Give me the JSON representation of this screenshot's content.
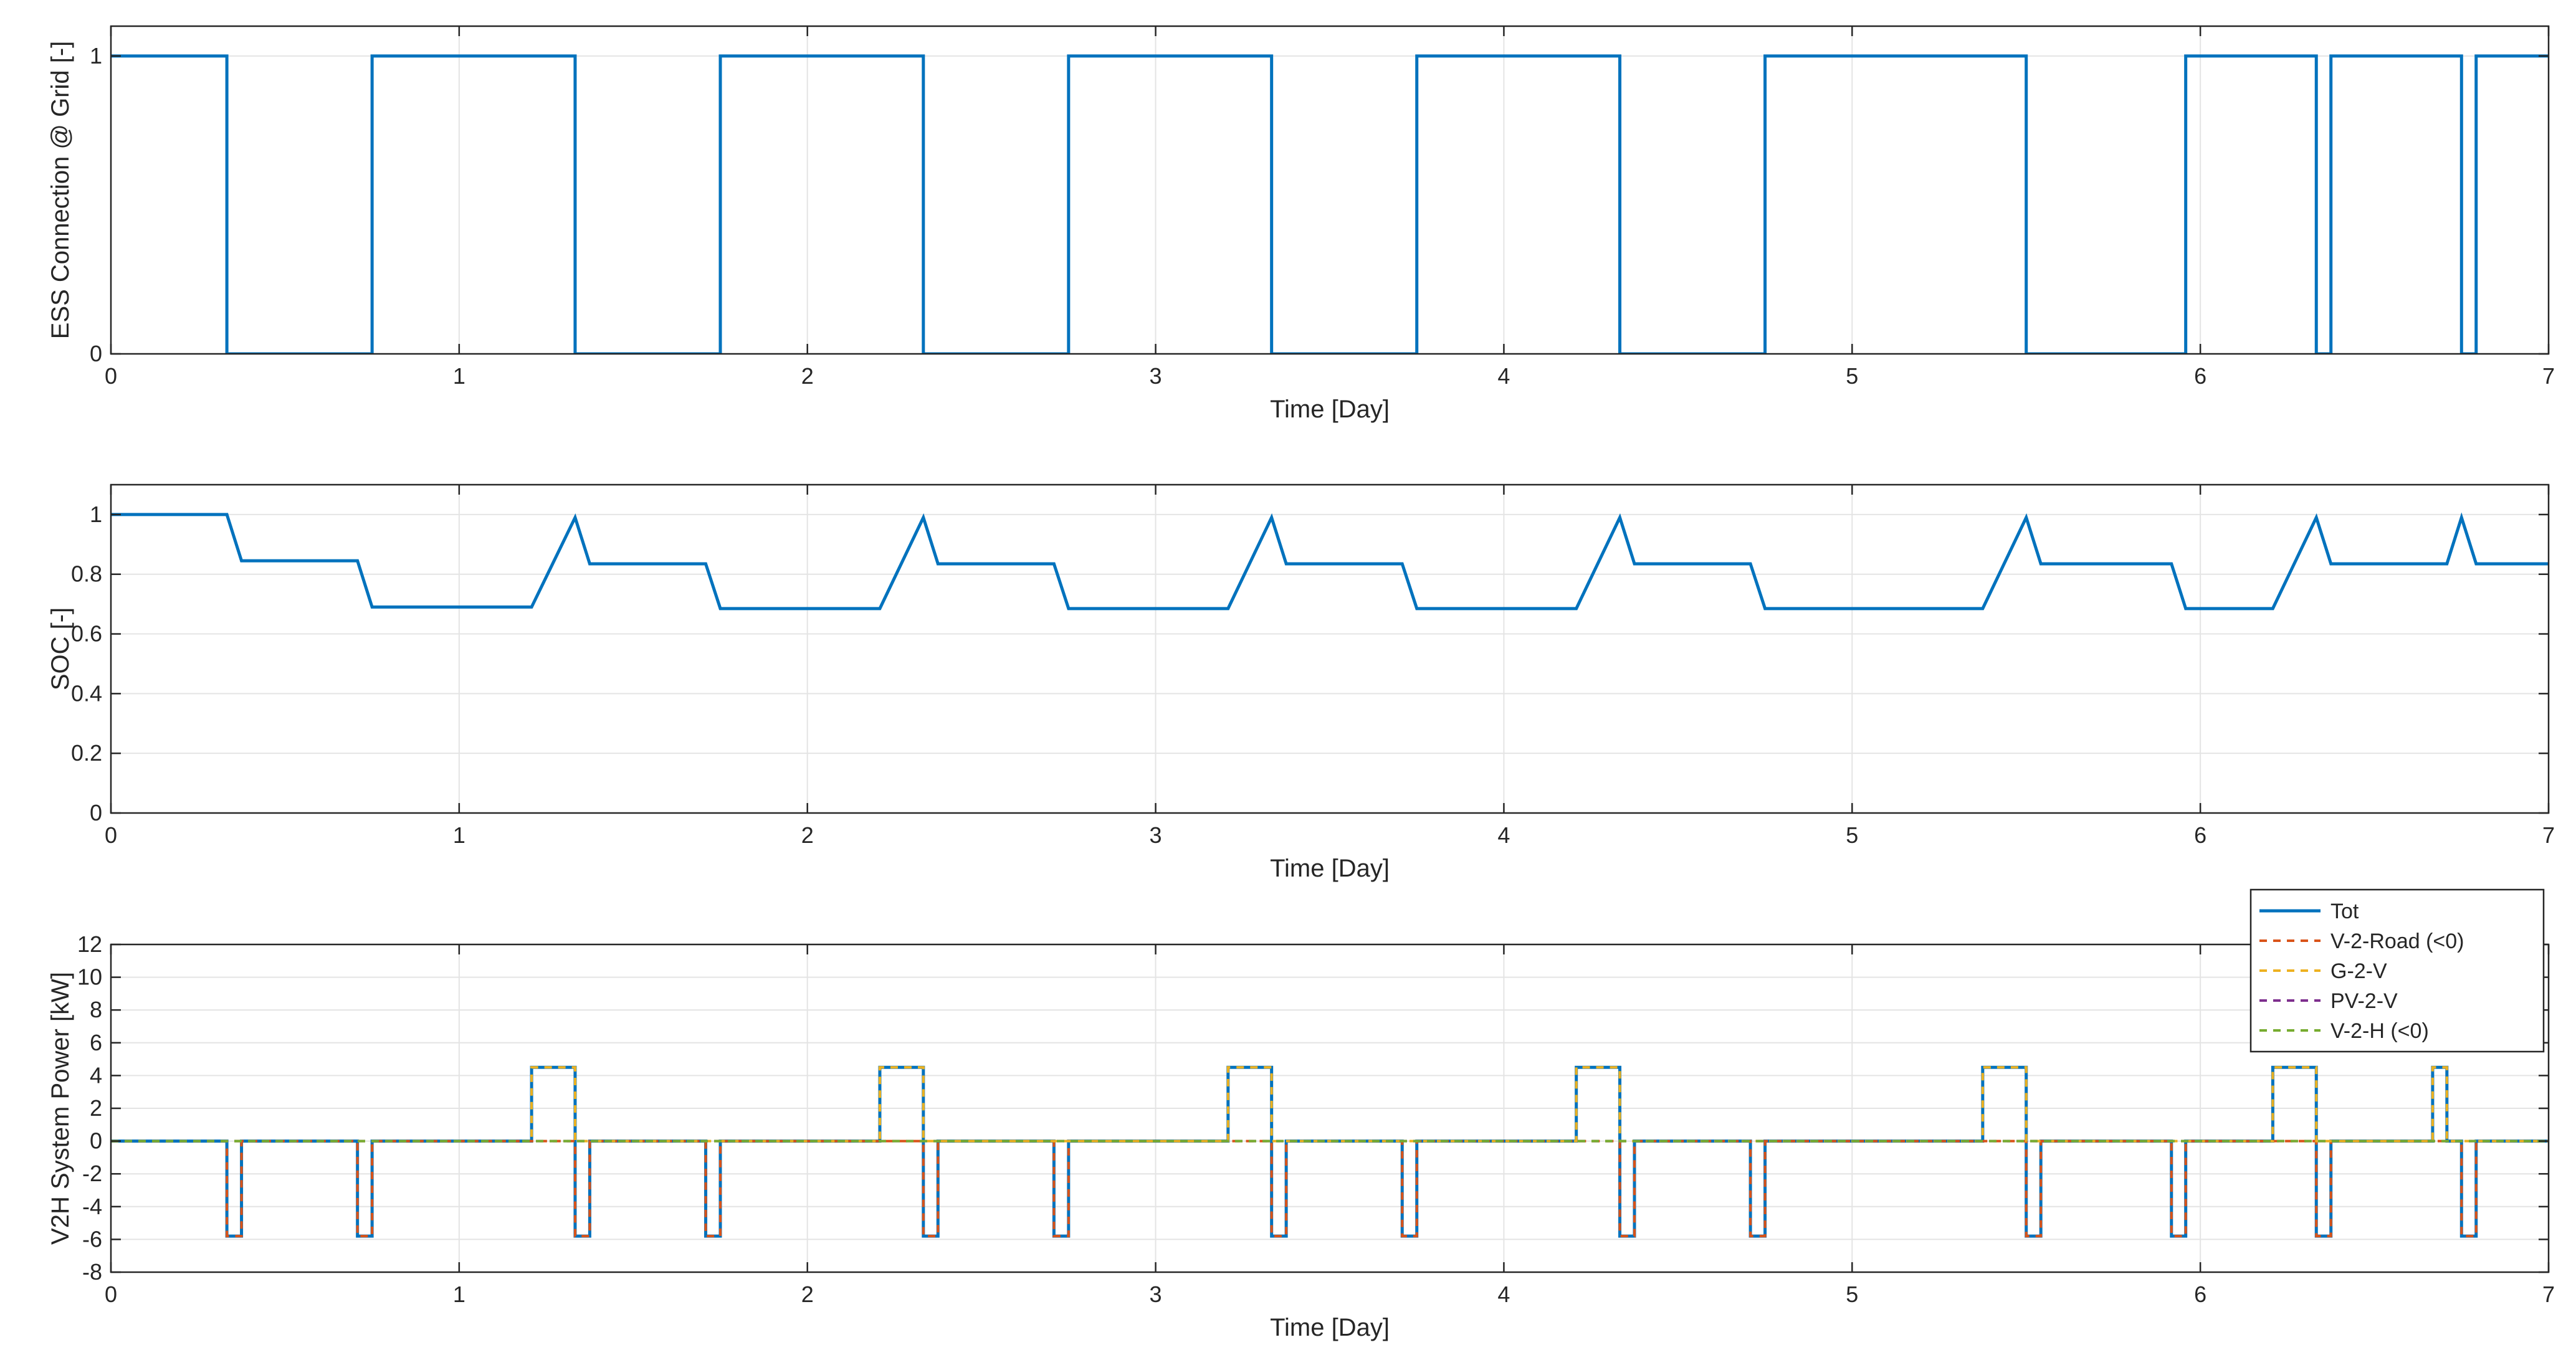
{
  "chart_data": [
    {
      "type": "line",
      "xlabel": "Time [Day]",
      "ylabel": "ESS Connection @ Grid [-]",
      "xlim": [
        0,
        7
      ],
      "ylim": [
        0,
        1.1
      ],
      "xticks": [
        0,
        1,
        2,
        3,
        4,
        5,
        6,
        7
      ],
      "yticks": [
        0,
        1
      ],
      "grid": true,
      "series": [
        {
          "color": "#0072BD",
          "style": "solid",
          "step": true,
          "x": [
            0,
            0.333,
            0.75,
            1.333,
            1.75,
            2.333,
            2.75,
            3.333,
            3.75,
            4.333,
            4.75,
            5.5,
            5.958,
            6.333,
            6.375,
            6.75,
            6.792,
            7
          ],
          "y": [
            1,
            0,
            1,
            0,
            1,
            0,
            1,
            0,
            1,
            0,
            1,
            0,
            1,
            0,
            1,
            0,
            1,
            1
          ]
        }
      ]
    },
    {
      "type": "line",
      "xlabel": "Time [Day]",
      "ylabel": "SOC [-]",
      "xlim": [
        0,
        7
      ],
      "ylim": [
        0,
        1.1
      ],
      "xticks": [
        0,
        1,
        2,
        3,
        4,
        5,
        6,
        7
      ],
      "yticks": [
        0,
        0.2,
        0.4,
        0.6,
        0.8,
        1
      ],
      "grid": true,
      "series": [
        {
          "color": "#0072BD",
          "style": "solid",
          "x": [
            0,
            0.333,
            0.375,
            0.708,
            0.75,
            1.208,
            1.333,
            1.375,
            1.708,
            1.75,
            2.208,
            2.333,
            2.375,
            2.708,
            2.75,
            3.208,
            3.333,
            3.375,
            3.708,
            3.75,
            4.208,
            4.333,
            4.375,
            4.708,
            4.75,
            5.375,
            5.5,
            5.542,
            5.917,
            5.958,
            6.208,
            6.333,
            6.375,
            6.708,
            6.75,
            6.792,
            7
          ],
          "y": [
            1,
            1,
            0.845,
            0.845,
            0.69,
            0.69,
            0.99,
            0.835,
            0.835,
            0.685,
            0.685,
            0.99,
            0.835,
            0.835,
            0.685,
            0.685,
            0.99,
            0.835,
            0.835,
            0.685,
            0.685,
            0.99,
            0.835,
            0.835,
            0.685,
            0.685,
            0.99,
            0.835,
            0.835,
            0.685,
            0.685,
            0.99,
            0.835,
            0.835,
            0.99,
            0.835,
            0.835
          ]
        }
      ]
    },
    {
      "type": "line",
      "xlabel": "Time [Day]",
      "ylabel": "V2H System Power [kW]",
      "xlim": [
        0,
        7
      ],
      "ylim": [
        -8,
        12
      ],
      "xticks": [
        0,
        1,
        2,
        3,
        4,
        5,
        6,
        7
      ],
      "yticks": [
        -8,
        -6,
        -4,
        -2,
        0,
        2,
        4,
        6,
        8,
        10,
        12
      ],
      "grid": true,
      "legend": "top-right",
      "series": [
        {
          "name": "Tot",
          "color": "#0072BD",
          "style": "solid",
          "step": true,
          "x": [
            0,
            0.333,
            0.375,
            0.708,
            0.75,
            1.208,
            1.333,
            1.375,
            1.708,
            1.75,
            2.208,
            2.333,
            2.375,
            2.708,
            2.75,
            3.208,
            3.333,
            3.375,
            3.708,
            3.75,
            4.208,
            4.333,
            4.375,
            4.708,
            4.75,
            5.375,
            5.5,
            5.542,
            5.917,
            5.958,
            6.208,
            6.333,
            6.375,
            6.667,
            6.708,
            6.75,
            6.792,
            7
          ],
          "y": [
            0,
            -5.8,
            0,
            -5.8,
            0,
            4.5,
            -5.8,
            0,
            -5.8,
            0,
            4.5,
            -5.8,
            0,
            -5.8,
            0,
            4.5,
            -5.8,
            0,
            -5.8,
            0,
            4.5,
            -5.8,
            0,
            -5.8,
            0,
            4.5,
            -5.8,
            0,
            -5.8,
            0,
            4.5,
            -5.8,
            0,
            4.5,
            0,
            -5.8,
            0,
            0
          ]
        },
        {
          "name": "V-2-Road (<0)",
          "color": "#D95319",
          "style": "dashed",
          "step": true,
          "x": [
            0,
            0.333,
            0.375,
            0.708,
            0.75,
            1.333,
            1.375,
            1.708,
            1.75,
            2.333,
            2.375,
            2.708,
            2.75,
            3.333,
            3.375,
            3.708,
            3.75,
            4.333,
            4.375,
            4.708,
            4.75,
            5.5,
            5.542,
            5.917,
            5.958,
            6.333,
            6.375,
            6.75,
            6.792,
            7
          ],
          "y": [
            0,
            -5.8,
            0,
            -5.8,
            0,
            -5.8,
            0,
            -5.8,
            0,
            -5.8,
            0,
            -5.8,
            0,
            -5.8,
            0,
            -5.8,
            0,
            -5.8,
            0,
            -5.8,
            0,
            -5.8,
            0,
            -5.8,
            0,
            -5.8,
            0,
            -5.8,
            0,
            0
          ]
        },
        {
          "name": "G-2-V",
          "color": "#EDB120",
          "style": "dashed",
          "step": true,
          "x": [
            0,
            1.208,
            1.333,
            2.208,
            2.333,
            3.208,
            3.333,
            4.208,
            4.333,
            5.375,
            5.5,
            6.208,
            6.333,
            6.667,
            6.708,
            7
          ],
          "y": [
            0,
            4.5,
            0,
            4.5,
            0,
            4.5,
            0,
            4.5,
            0,
            4.5,
            0,
            4.5,
            0,
            4.5,
            0,
            0
          ]
        },
        {
          "name": "PV-2-V",
          "color": "#7E2F8E",
          "style": "dashed",
          "step": true,
          "x": [
            0,
            7
          ],
          "y": [
            0,
            0
          ]
        },
        {
          "name": "V-2-H (<0)",
          "color": "#77AC30",
          "style": "dashed",
          "step": true,
          "x": [
            0,
            7
          ],
          "y": [
            0,
            0
          ]
        }
      ]
    }
  ]
}
